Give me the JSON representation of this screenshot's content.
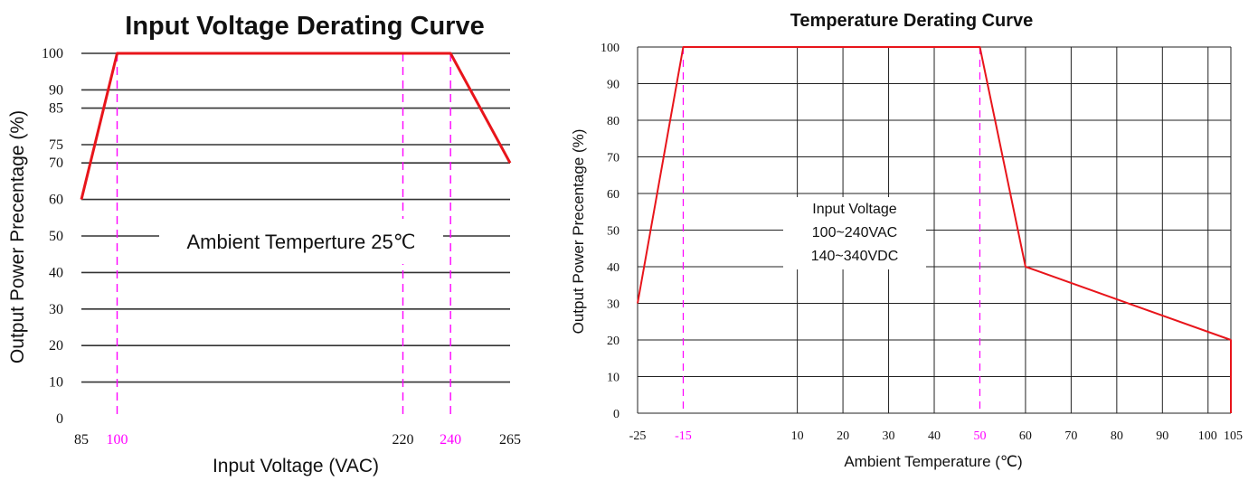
{
  "chart_data": [
    {
      "type": "line",
      "title": "Input Voltage Derating Curve",
      "xlabel": "Input Voltage (VAC)",
      "ylabel": "Output Power Precentage (%)",
      "x_ticks": [
        {
          "value": 85,
          "label": "85",
          "color": "#111111"
        },
        {
          "value": 100,
          "label": "100",
          "color": "#ff00ff"
        },
        {
          "value": 220,
          "label": "220",
          "color": "#111111"
        },
        {
          "value": 240,
          "label": "240",
          "color": "#ff00ff"
        },
        {
          "value": 265,
          "label": "265",
          "color": "#111111"
        }
      ],
      "y_ticks": [
        0,
        10,
        20,
        30,
        40,
        50,
        60,
        70,
        75,
        85,
        90,
        100
      ],
      "y_tick_labels": [
        "0",
        "10",
        "20",
        "30",
        "40",
        "50",
        "60",
        "70",
        "75",
        "85",
        "90",
        "100"
      ],
      "xlim": [
        85,
        265
      ],
      "ylim": [
        0,
        100
      ],
      "series": [
        {
          "x": [
            85,
            100,
            240,
            265
          ],
          "y": [
            60,
            100,
            100,
            70
          ],
          "color": "#e8151b"
        }
      ],
      "vlines": [
        {
          "x": 100,
          "color": "#ff00ff",
          "style": "dashed"
        },
        {
          "x": 220,
          "color": "#ff00ff",
          "style": "dashed"
        },
        {
          "x": 240,
          "color": "#ff00ff",
          "style": "dashed"
        }
      ],
      "annotation": [
        "Ambient Temperture 25℃"
      ],
      "grid": "horizontal"
    },
    {
      "type": "line",
      "title": "Temperature Derating Curve",
      "xlabel": "Ambient Temperature (℃)",
      "ylabel": "Output Power Precentage (%)",
      "x_ticks": [
        {
          "value": -25,
          "label": "-25",
          "color": "#111111"
        },
        {
          "value": -15,
          "label": "-15",
          "color": "#ff00ff"
        },
        {
          "value": 10,
          "label": "10",
          "color": "#111111"
        },
        {
          "value": 20,
          "label": "20",
          "color": "#111111"
        },
        {
          "value": 30,
          "label": "30",
          "color": "#111111"
        },
        {
          "value": 40,
          "label": "40",
          "color": "#111111"
        },
        {
          "value": 50,
          "label": "50",
          "color": "#ff00ff"
        },
        {
          "value": 60,
          "label": "60",
          "color": "#111111"
        },
        {
          "value": 70,
          "label": "70",
          "color": "#111111"
        },
        {
          "value": 80,
          "label": "80",
          "color": "#111111"
        },
        {
          "value": 90,
          "label": "90",
          "color": "#111111"
        },
        {
          "value": 100,
          "label": "100",
          "color": "#111111"
        },
        {
          "value": 105,
          "label": "105",
          "color": "#111111"
        }
      ],
      "y_ticks": [
        0,
        10,
        20,
        30,
        40,
        50,
        60,
        70,
        80,
        90,
        100
      ],
      "y_tick_labels": [
        "0",
        "10",
        "20",
        "30",
        "40",
        "50",
        "60",
        "70",
        "80",
        "90",
        "100"
      ],
      "xlim": [
        -25,
        105
      ],
      "ylim": [
        0,
        100
      ],
      "series": [
        {
          "x": [
            -25,
            -15,
            50,
            60,
            105,
            105
          ],
          "y": [
            30,
            100,
            100,
            40,
            20,
            0
          ],
          "color": "#e8151b"
        }
      ],
      "vlines": [
        {
          "x": -15,
          "color": "#ff00ff",
          "style": "dashed"
        },
        {
          "x": 50,
          "color": "#ff00ff",
          "style": "dashed"
        }
      ],
      "annotation": [
        "Input Voltage",
        "100~240VAC",
        "140~340VDC"
      ],
      "grid": "both"
    }
  ]
}
